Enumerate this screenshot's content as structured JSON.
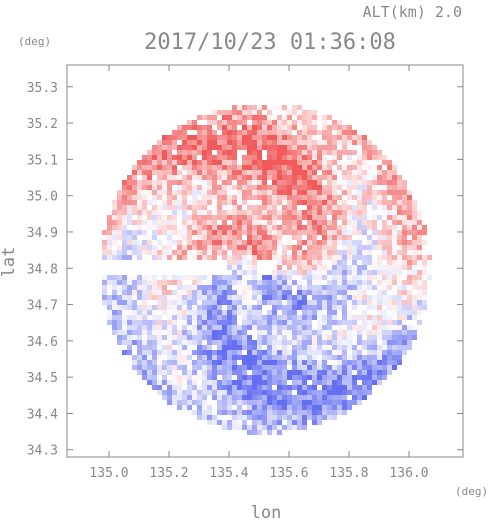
{
  "chart_data": {
    "type": "heatmap",
    "title": "2017/10/23 01:36:08",
    "subtitle": "ALT(km) 2.0",
    "xlabel": "lon",
    "ylabel": "lat",
    "x_unit": "(deg)",
    "y_unit": "(deg)",
    "xlim": [
      134.86,
      136.18
    ],
    "ylim": [
      34.28,
      35.36
    ],
    "x_ticks": [
      135.0,
      135.2,
      135.4,
      135.6,
      135.8,
      136.0
    ],
    "x_tick_labels": [
      "135.0",
      "135.2",
      "135.4",
      "135.6",
      "135.8",
      "136.0"
    ],
    "y_ticks": [
      34.3,
      34.4,
      34.5,
      34.6,
      34.7,
      34.8,
      34.9,
      35.0,
      35.1,
      35.2,
      35.3
    ],
    "y_tick_labels": [
      "34.3",
      "34.4",
      "34.5",
      "34.6",
      "34.7",
      "34.8",
      "34.9",
      "35.0",
      "35.1",
      "35.2",
      "35.3"
    ],
    "radar_center": {
      "lon": 135.52,
      "lat": 34.8
    },
    "radar_range_deg": 0.55,
    "colors": {
      "positive": "#f0605c",
      "negative": "#6a74f0",
      "axis": "#888888"
    },
    "grid": false
  }
}
